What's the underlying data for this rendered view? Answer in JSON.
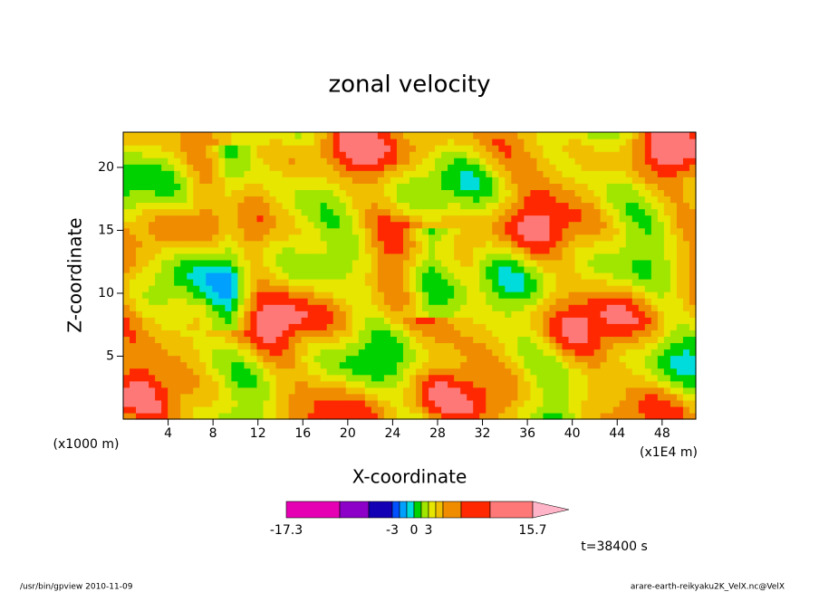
{
  "chart_data": {
    "type": "contour",
    "title": "zonal velocity",
    "x_label": "X-coordinate",
    "y_label": "Z-coordinate",
    "x_unit_left": "(x1000 m)",
    "x_unit_right": "(x1E4 m)",
    "xlim": [
      0,
      51
    ],
    "xticks": [
      4,
      8,
      12,
      16,
      20,
      24,
      28,
      32,
      36,
      40,
      44,
      48
    ],
    "ylim": [
      0,
      22.8
    ],
    "yticks": [
      5,
      10,
      15,
      20
    ],
    "colorbar": {
      "colors": [
        "#e600b4",
        "#8c00c8",
        "#1400b4",
        "#0050ff",
        "#00a0ff",
        "#00dcdc",
        "#00d200",
        "#a0e600",
        "#e6e600",
        "#f0c000",
        "#f08c00",
        "#ff2800",
        "#ff7878"
      ],
      "extend_color": "#ffb4c8",
      "labels": [
        -17.3,
        -3,
        0,
        3,
        15.7
      ]
    },
    "time_label": "t=38400 s",
    "footer_left": "/usr/bin/gpview   2010-11-09",
    "footer_right": "arare-earth-reikyaku2K_VelX.nc@VelX"
  }
}
